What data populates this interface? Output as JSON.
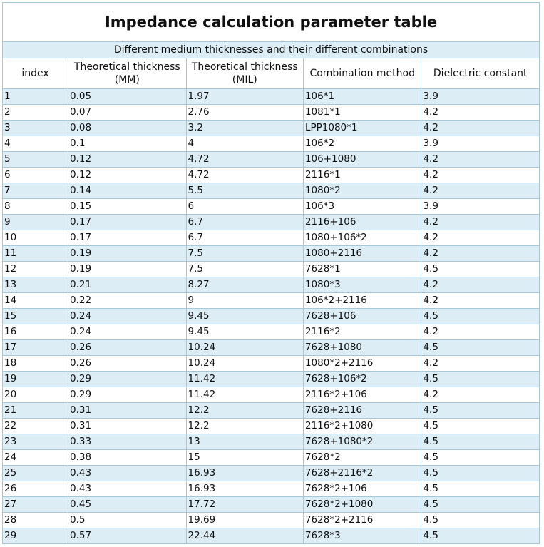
{
  "table": {
    "title": "Impedance calculation parameter table",
    "subtitle": "Different medium thicknesses and their different combinations",
    "headers": {
      "index": "index",
      "thickness_mm": "Theoretical thickness (MM)",
      "thickness_mil": "Theoretical thickness (MIL)",
      "combination": "Combination method",
      "dielectric": "Dielectric constant"
    },
    "rows": [
      [
        "1",
        "0.05",
        "1.97",
        "106*1",
        "3.9"
      ],
      [
        "2",
        "0.07",
        "2.76",
        "1081*1",
        "4.2"
      ],
      [
        "3",
        "0.08",
        "3.2",
        "LPP1080*1",
        "4.2"
      ],
      [
        "4",
        "0.1",
        "4",
        "106*2",
        "3.9"
      ],
      [
        "5",
        "0.12",
        "4.72",
        "106+1080",
        "4.2"
      ],
      [
        "6",
        "0.12",
        "4.72",
        "2116*1",
        "4.2"
      ],
      [
        "7",
        "0.14",
        "5.5",
        "1080*2",
        "4.2"
      ],
      [
        "8",
        "0.15",
        "6",
        "106*3",
        "3.9"
      ],
      [
        "9",
        "0.17",
        "6.7",
        "2116+106",
        "4.2"
      ],
      [
        "10",
        "0.17",
        "6.7",
        "1080+106*2",
        "4.2"
      ],
      [
        "11",
        "0.19",
        "7.5",
        "1080+2116",
        "4.2"
      ],
      [
        "12",
        "0.19",
        "7.5",
        "7628*1",
        "4.5"
      ],
      [
        "13",
        "0.21",
        "8.27",
        "1080*3",
        "4.2"
      ],
      [
        "14",
        "0.22",
        "9",
        "106*2+2116",
        "4.2"
      ],
      [
        "15",
        "0.24",
        "9.45",
        "7628+106",
        "4.5"
      ],
      [
        "16",
        "0.24",
        "9.45",
        "2116*2",
        "4.2"
      ],
      [
        "17",
        "0.26",
        "10.24",
        "7628+1080",
        "4.5"
      ],
      [
        "18",
        "0.26",
        "10.24",
        "1080*2+2116",
        "4.2"
      ],
      [
        "19",
        "0.29",
        "11.42",
        "7628+106*2",
        "4.5"
      ],
      [
        "20",
        "0.29",
        "11.42",
        "2116*2+106",
        "4.2"
      ],
      [
        "21",
        "0.31",
        "12.2",
        "7628+2116",
        "4.5"
      ],
      [
        "22",
        "0.31",
        "12.2",
        "2116*2+1080",
        "4.5"
      ],
      [
        "23",
        "0.33",
        "13",
        "7628+1080*2",
        "4.5"
      ],
      [
        "24",
        "0.38",
        "15",
        "7628*2",
        "4.5"
      ],
      [
        "25",
        "0.43",
        "16.93",
        "7628+2116*2",
        "4.5"
      ],
      [
        "26",
        "0.43",
        "16.93",
        "7628*2+106",
        "4.5"
      ],
      [
        "27",
        "0.45",
        "17.72",
        "7628*2+1080",
        "4.5"
      ],
      [
        "28",
        "0.5",
        "19.69",
        "7628*2+2116",
        "4.5"
      ],
      [
        "29",
        "0.57",
        "22.44",
        "7628*3",
        "4.5"
      ]
    ],
    "colors": {
      "band": "#dcedf5",
      "border": "#a6c8d8",
      "background": "#ffffff"
    }
  }
}
